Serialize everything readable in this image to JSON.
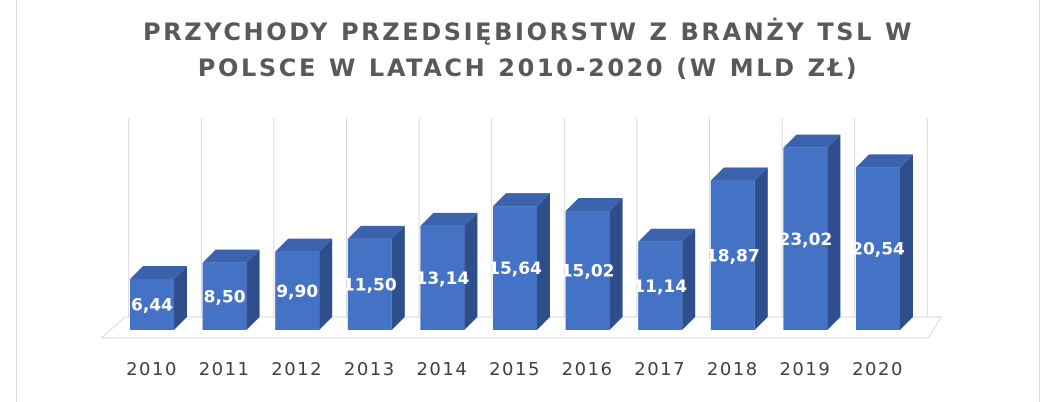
{
  "chart_data": {
    "type": "bar",
    "title_line1": "PRZYCHODY PRZEDSIĘBIORSTW Z BRANŻY TSL W",
    "title_line2": "POLSCE W LATACH 2010-2020 (W MLD ZŁ)",
    "categories": [
      "2010",
      "2011",
      "2012",
      "2013",
      "2014",
      "2015",
      "2016",
      "2017",
      "2018",
      "2019",
      "2020"
    ],
    "values": [
      6.44,
      8.5,
      9.9,
      11.5,
      13.14,
      15.64,
      15.02,
      11.14,
      18.87,
      23.02,
      20.54
    ],
    "value_labels": [
      "6,44",
      "8,50",
      "9,90",
      "11,50",
      "13,14",
      "15,64",
      "15,02",
      "11,14",
      "18,87",
      "23,02",
      "20,54"
    ],
    "xlabel": "",
    "ylabel": "",
    "ylim": [
      0,
      25
    ],
    "grid": true,
    "legend": "none",
    "colors": {
      "bar_front": "#4472c4",
      "bar_side": "#2e4f8c",
      "bar_top": "#3a62ad",
      "grid": "#d9d9d9",
      "title": "#595959"
    }
  }
}
